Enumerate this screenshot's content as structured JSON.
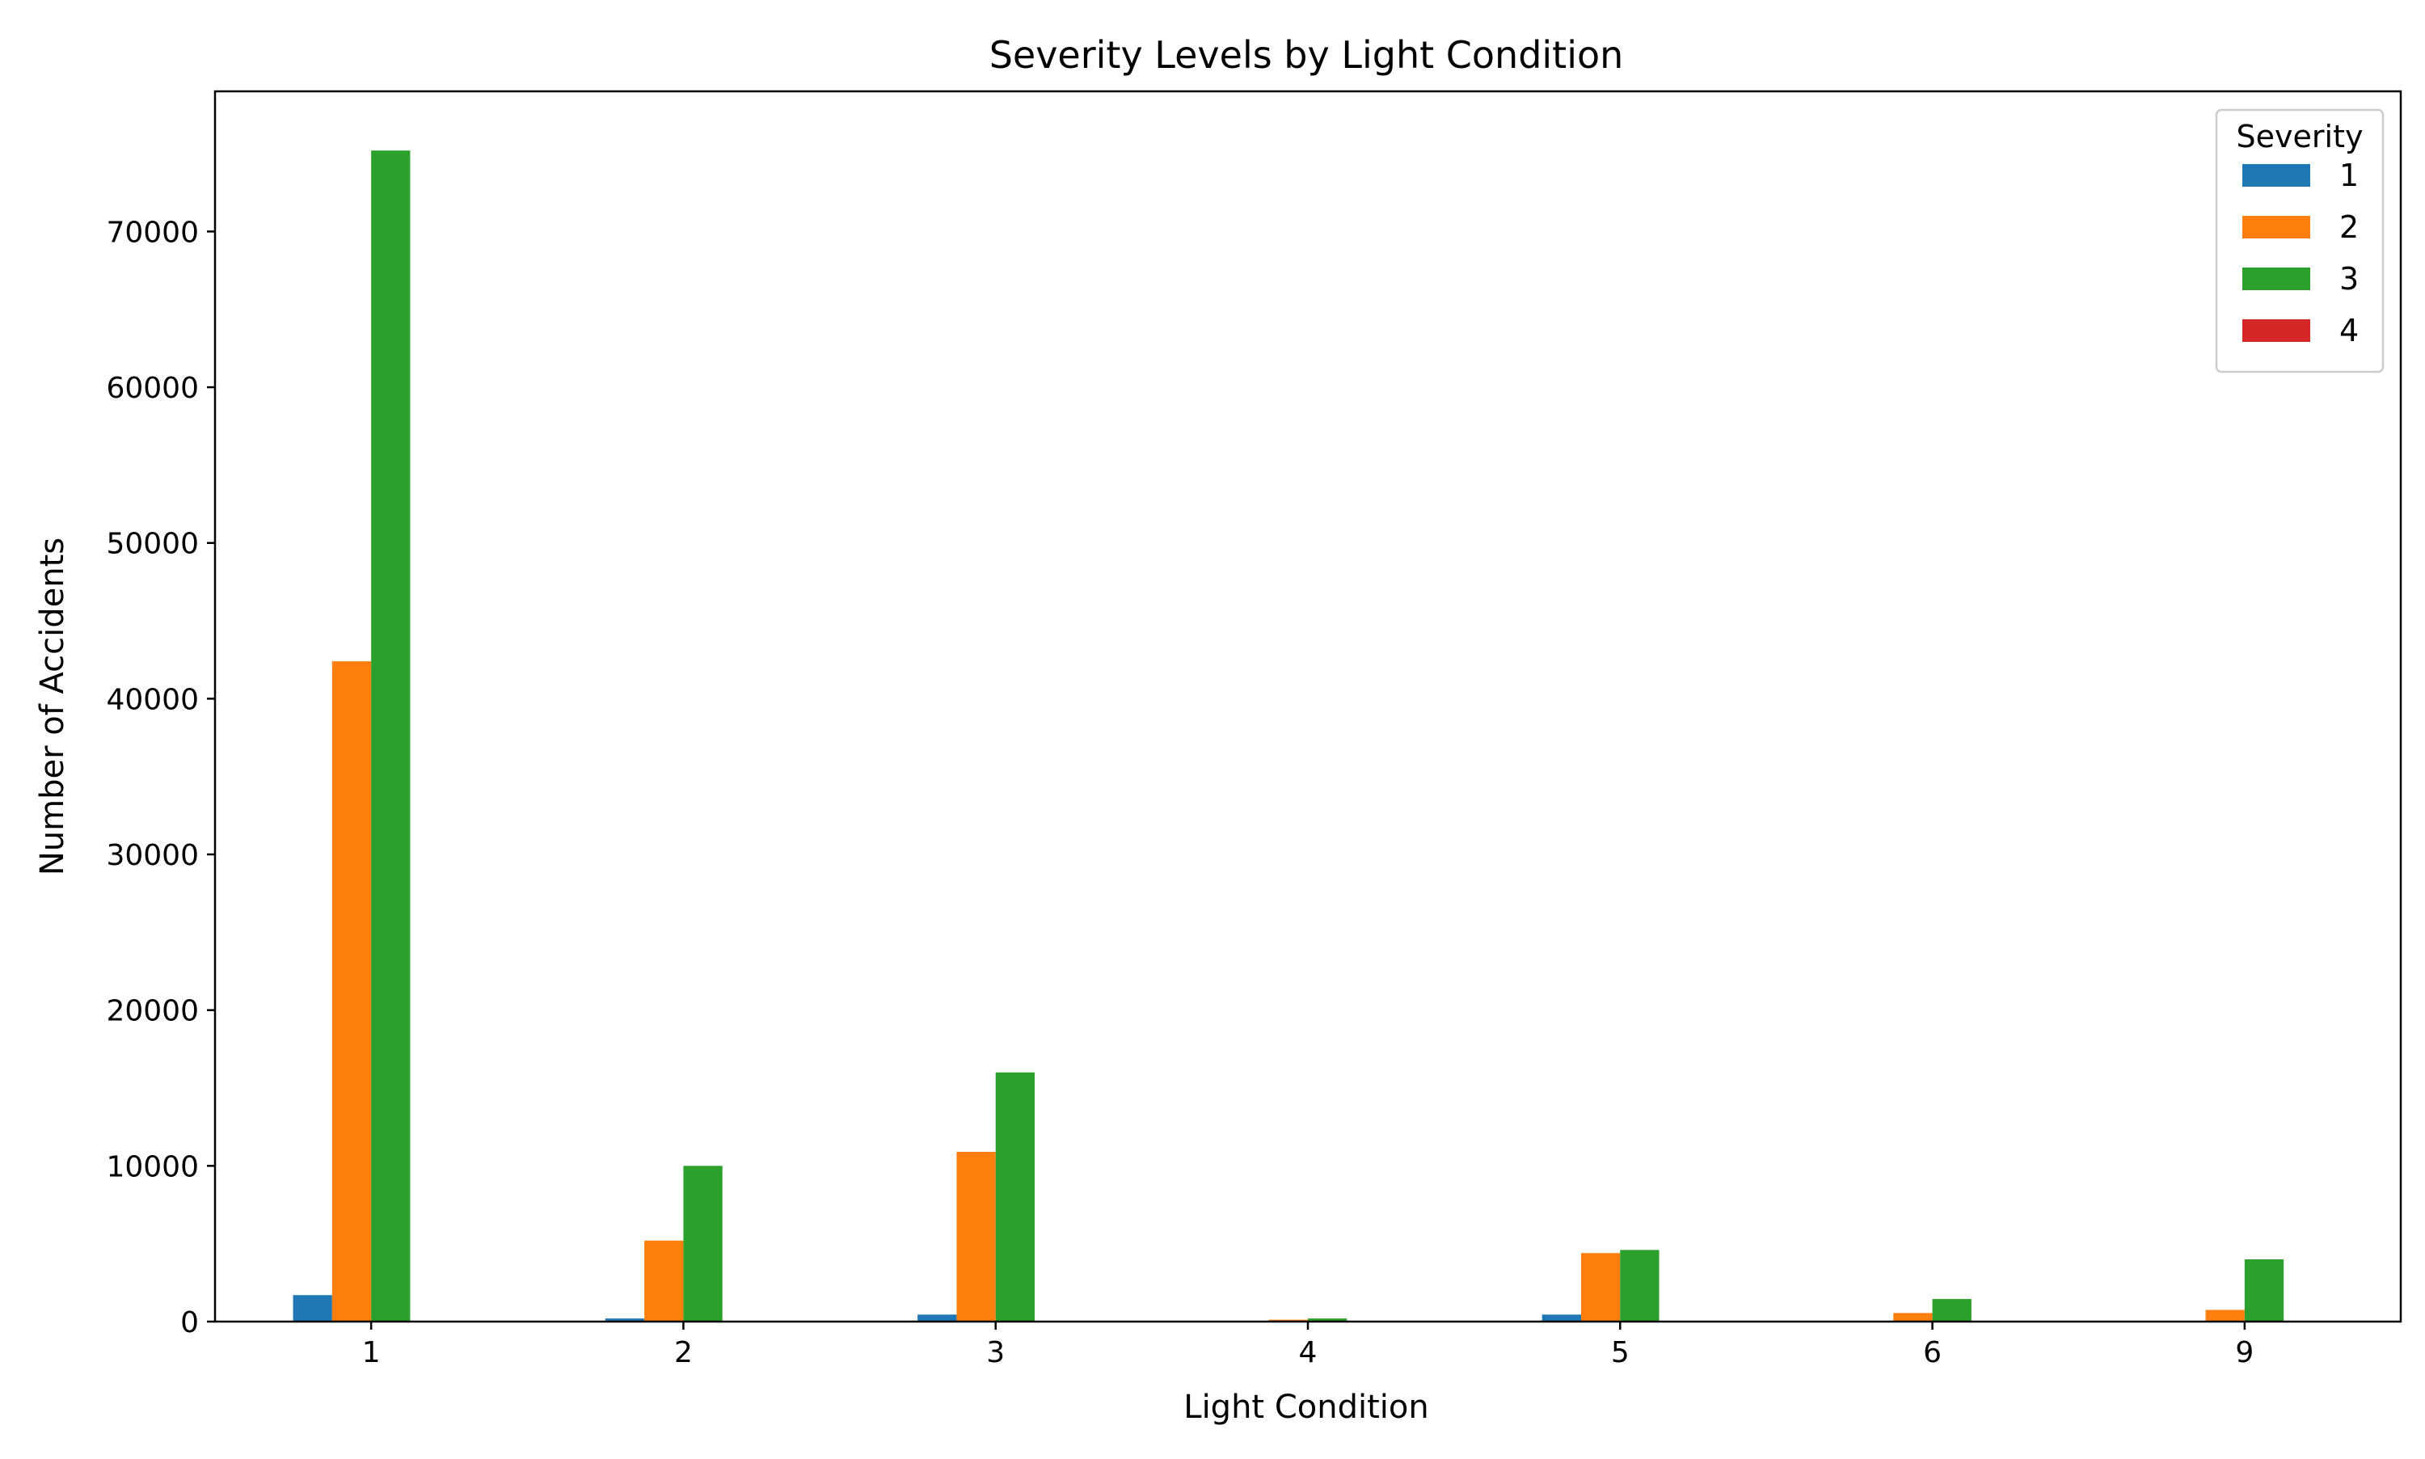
{
  "chart_data": {
    "type": "bar",
    "title": "Severity Levels by Light Condition",
    "xlabel": "Light Condition",
    "ylabel": "Number of Accidents",
    "categories": [
      "1",
      "2",
      "3",
      "4",
      "5",
      "6",
      "9"
    ],
    "ylim": [
      0,
      79000
    ],
    "yticks": [
      0,
      10000,
      20000,
      30000,
      40000,
      50000,
      60000,
      70000
    ],
    "ytick_labels": [
      "0",
      "10000",
      "20000",
      "30000",
      "40000",
      "50000",
      "60000",
      "70000"
    ],
    "grid": false,
    "legend": {
      "title": "Severity",
      "position": "top-right"
    },
    "series": [
      {
        "name": "1",
        "color": "#1f77b4",
        "values": [
          1700,
          200,
          450,
          20,
          450,
          30,
          30
        ]
      },
      {
        "name": "2",
        "color": "#ff7f0e",
        "values": [
          42400,
          5200,
          10900,
          120,
          4400,
          550,
          750
        ]
      },
      {
        "name": "3",
        "color": "#2ca02c",
        "values": [
          75200,
          10000,
          16000,
          200,
          4600,
          1450,
          4000
        ]
      },
      {
        "name": "4",
        "color": "#d62728",
        "values": [
          0,
          0,
          0,
          0,
          0,
          0,
          0
        ]
      }
    ]
  }
}
